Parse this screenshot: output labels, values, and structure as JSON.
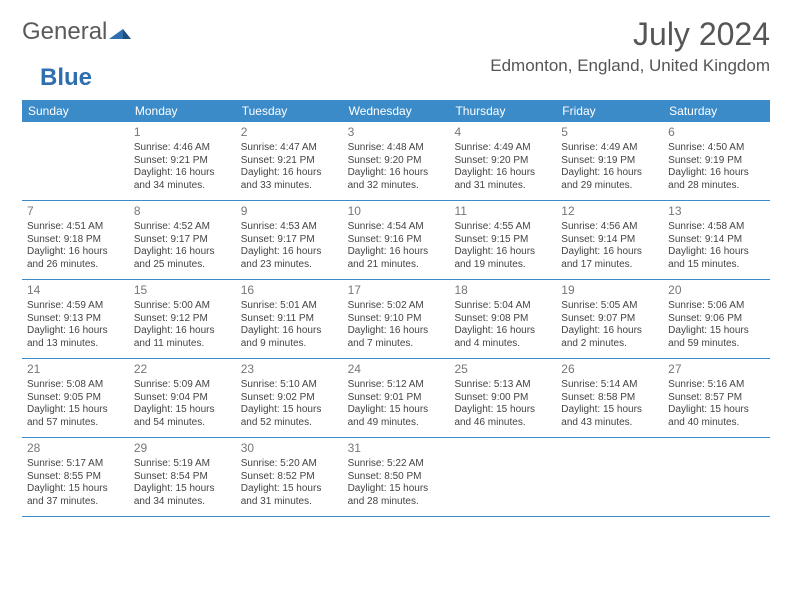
{
  "logo": {
    "text1": "General",
    "text2": "Blue"
  },
  "title": "July 2024",
  "location": "Edmonton, England, United Kingdom",
  "weekdays": [
    "Sunday",
    "Monday",
    "Tuesday",
    "Wednesday",
    "Thursday",
    "Friday",
    "Saturday"
  ],
  "colors": {
    "header_bg": "#3b8bc9",
    "header_text": "#ffffff",
    "title_color": "#555555",
    "text_color": "#444444",
    "daynum_color": "#777777",
    "row_border": "#3b8bc9"
  },
  "weeks": [
    [
      {
        "num": "",
        "sunrise": "",
        "sunset": "",
        "daylight1": "",
        "daylight2": ""
      },
      {
        "num": "1",
        "sunrise": "Sunrise: 4:46 AM",
        "sunset": "Sunset: 9:21 PM",
        "daylight1": "Daylight: 16 hours",
        "daylight2": "and 34 minutes."
      },
      {
        "num": "2",
        "sunrise": "Sunrise: 4:47 AM",
        "sunset": "Sunset: 9:21 PM",
        "daylight1": "Daylight: 16 hours",
        "daylight2": "and 33 minutes."
      },
      {
        "num": "3",
        "sunrise": "Sunrise: 4:48 AM",
        "sunset": "Sunset: 9:20 PM",
        "daylight1": "Daylight: 16 hours",
        "daylight2": "and 32 minutes."
      },
      {
        "num": "4",
        "sunrise": "Sunrise: 4:49 AM",
        "sunset": "Sunset: 9:20 PM",
        "daylight1": "Daylight: 16 hours",
        "daylight2": "and 31 minutes."
      },
      {
        "num": "5",
        "sunrise": "Sunrise: 4:49 AM",
        "sunset": "Sunset: 9:19 PM",
        "daylight1": "Daylight: 16 hours",
        "daylight2": "and 29 minutes."
      },
      {
        "num": "6",
        "sunrise": "Sunrise: 4:50 AM",
        "sunset": "Sunset: 9:19 PM",
        "daylight1": "Daylight: 16 hours",
        "daylight2": "and 28 minutes."
      }
    ],
    [
      {
        "num": "7",
        "sunrise": "Sunrise: 4:51 AM",
        "sunset": "Sunset: 9:18 PM",
        "daylight1": "Daylight: 16 hours",
        "daylight2": "and 26 minutes."
      },
      {
        "num": "8",
        "sunrise": "Sunrise: 4:52 AM",
        "sunset": "Sunset: 9:17 PM",
        "daylight1": "Daylight: 16 hours",
        "daylight2": "and 25 minutes."
      },
      {
        "num": "9",
        "sunrise": "Sunrise: 4:53 AM",
        "sunset": "Sunset: 9:17 PM",
        "daylight1": "Daylight: 16 hours",
        "daylight2": "and 23 minutes."
      },
      {
        "num": "10",
        "sunrise": "Sunrise: 4:54 AM",
        "sunset": "Sunset: 9:16 PM",
        "daylight1": "Daylight: 16 hours",
        "daylight2": "and 21 minutes."
      },
      {
        "num": "11",
        "sunrise": "Sunrise: 4:55 AM",
        "sunset": "Sunset: 9:15 PM",
        "daylight1": "Daylight: 16 hours",
        "daylight2": "and 19 minutes."
      },
      {
        "num": "12",
        "sunrise": "Sunrise: 4:56 AM",
        "sunset": "Sunset: 9:14 PM",
        "daylight1": "Daylight: 16 hours",
        "daylight2": "and 17 minutes."
      },
      {
        "num": "13",
        "sunrise": "Sunrise: 4:58 AM",
        "sunset": "Sunset: 9:14 PM",
        "daylight1": "Daylight: 16 hours",
        "daylight2": "and 15 minutes."
      }
    ],
    [
      {
        "num": "14",
        "sunrise": "Sunrise: 4:59 AM",
        "sunset": "Sunset: 9:13 PM",
        "daylight1": "Daylight: 16 hours",
        "daylight2": "and 13 minutes."
      },
      {
        "num": "15",
        "sunrise": "Sunrise: 5:00 AM",
        "sunset": "Sunset: 9:12 PM",
        "daylight1": "Daylight: 16 hours",
        "daylight2": "and 11 minutes."
      },
      {
        "num": "16",
        "sunrise": "Sunrise: 5:01 AM",
        "sunset": "Sunset: 9:11 PM",
        "daylight1": "Daylight: 16 hours",
        "daylight2": "and 9 minutes."
      },
      {
        "num": "17",
        "sunrise": "Sunrise: 5:02 AM",
        "sunset": "Sunset: 9:10 PM",
        "daylight1": "Daylight: 16 hours",
        "daylight2": "and 7 minutes."
      },
      {
        "num": "18",
        "sunrise": "Sunrise: 5:04 AM",
        "sunset": "Sunset: 9:08 PM",
        "daylight1": "Daylight: 16 hours",
        "daylight2": "and 4 minutes."
      },
      {
        "num": "19",
        "sunrise": "Sunrise: 5:05 AM",
        "sunset": "Sunset: 9:07 PM",
        "daylight1": "Daylight: 16 hours",
        "daylight2": "and 2 minutes."
      },
      {
        "num": "20",
        "sunrise": "Sunrise: 5:06 AM",
        "sunset": "Sunset: 9:06 PM",
        "daylight1": "Daylight: 15 hours",
        "daylight2": "and 59 minutes."
      }
    ],
    [
      {
        "num": "21",
        "sunrise": "Sunrise: 5:08 AM",
        "sunset": "Sunset: 9:05 PM",
        "daylight1": "Daylight: 15 hours",
        "daylight2": "and 57 minutes."
      },
      {
        "num": "22",
        "sunrise": "Sunrise: 5:09 AM",
        "sunset": "Sunset: 9:04 PM",
        "daylight1": "Daylight: 15 hours",
        "daylight2": "and 54 minutes."
      },
      {
        "num": "23",
        "sunrise": "Sunrise: 5:10 AM",
        "sunset": "Sunset: 9:02 PM",
        "daylight1": "Daylight: 15 hours",
        "daylight2": "and 52 minutes."
      },
      {
        "num": "24",
        "sunrise": "Sunrise: 5:12 AM",
        "sunset": "Sunset: 9:01 PM",
        "daylight1": "Daylight: 15 hours",
        "daylight2": "and 49 minutes."
      },
      {
        "num": "25",
        "sunrise": "Sunrise: 5:13 AM",
        "sunset": "Sunset: 9:00 PM",
        "daylight1": "Daylight: 15 hours",
        "daylight2": "and 46 minutes."
      },
      {
        "num": "26",
        "sunrise": "Sunrise: 5:14 AM",
        "sunset": "Sunset: 8:58 PM",
        "daylight1": "Daylight: 15 hours",
        "daylight2": "and 43 minutes."
      },
      {
        "num": "27",
        "sunrise": "Sunrise: 5:16 AM",
        "sunset": "Sunset: 8:57 PM",
        "daylight1": "Daylight: 15 hours",
        "daylight2": "and 40 minutes."
      }
    ],
    [
      {
        "num": "28",
        "sunrise": "Sunrise: 5:17 AM",
        "sunset": "Sunset: 8:55 PM",
        "daylight1": "Daylight: 15 hours",
        "daylight2": "and 37 minutes."
      },
      {
        "num": "29",
        "sunrise": "Sunrise: 5:19 AM",
        "sunset": "Sunset: 8:54 PM",
        "daylight1": "Daylight: 15 hours",
        "daylight2": "and 34 minutes."
      },
      {
        "num": "30",
        "sunrise": "Sunrise: 5:20 AM",
        "sunset": "Sunset: 8:52 PM",
        "daylight1": "Daylight: 15 hours",
        "daylight2": "and 31 minutes."
      },
      {
        "num": "31",
        "sunrise": "Sunrise: 5:22 AM",
        "sunset": "Sunset: 8:50 PM",
        "daylight1": "Daylight: 15 hours",
        "daylight2": "and 28 minutes."
      },
      {
        "num": "",
        "sunrise": "",
        "sunset": "",
        "daylight1": "",
        "daylight2": ""
      },
      {
        "num": "",
        "sunrise": "",
        "sunset": "",
        "daylight1": "",
        "daylight2": ""
      },
      {
        "num": "",
        "sunrise": "",
        "sunset": "",
        "daylight1": "",
        "daylight2": ""
      }
    ]
  ]
}
